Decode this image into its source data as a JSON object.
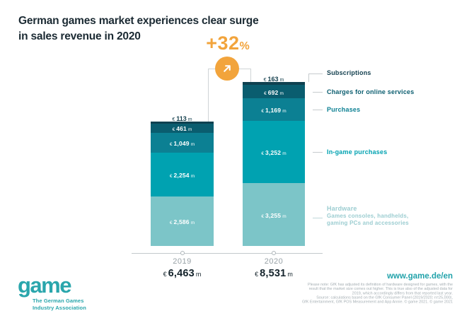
{
  "title": "German games market experiences clear surge\nin sales revenue in 2020",
  "growth": {
    "value": "+32",
    "percent": "%",
    "arrow_icon": "arrow-up-right-icon"
  },
  "chart_data": {
    "type": "bar",
    "subtype": "stacked-bar",
    "title": "German games market experiences clear surge in sales revenue in 2020",
    "unit": "€ million",
    "currency": "€",
    "unit_suffix": "m",
    "growth_pct": "+32%",
    "legend_position": "right",
    "categories": [
      "2019",
      "2020"
    ],
    "totals": [
      {
        "value": 6463,
        "label": "6,463"
      },
      {
        "value": 8531,
        "label": "8,531"
      }
    ],
    "segments": [
      {
        "name": "Subscriptions",
        "color": "#0F4150",
        "label_color": "#123F4E",
        "label_outside": true,
        "values": [
          113,
          163
        ],
        "labels": [
          "113",
          "163"
        ]
      },
      {
        "name": "Charges for online services",
        "color": "#0A5D6F",
        "label_color": "#0A5D6F",
        "values": [
          461,
          692
        ],
        "labels": [
          "461",
          "692"
        ]
      },
      {
        "name": "Purchases",
        "color": "#0C8093",
        "label_color": "#0C8093",
        "values": [
          1049,
          1169
        ],
        "labels": [
          "1,049",
          "1,169"
        ]
      },
      {
        "name": "In-game purchases",
        "color": "#00A2B1",
        "label_color": "#00A2B1",
        "values": [
          2254,
          3252
        ],
        "labels": [
          "2,254",
          "3,252"
        ]
      },
      {
        "name": "Hardware",
        "color": "#7CC5C8",
        "label_color": "#9CCDD1",
        "sublabel": "Games consoles, handhelds,\ngaming PCs and accessories",
        "values": [
          2586,
          3255
        ],
        "labels": [
          "2,586",
          "3,255"
        ]
      }
    ]
  },
  "footer": {
    "logo_text": "game",
    "logo_sub": "The German Games\nIndustry Association",
    "website": "www.game.de/en",
    "note": "Please note: GfK has adjusted its definition of hardware designed for games, with the\nresult that the market size comes out higher. This is true also of the adjusted data for\n2019, which accordingly differs from that reported last year.\nSource: calculations based on the GfK Consumer Panel (2019/2020; n=25,000),\nGfK Entertainment, GfK POS Measurement and App Annie. © game 2021. © game 2021"
  },
  "colors": {
    "accent_orange": "#F2A43C",
    "brand_teal": "#2AA6AC",
    "title_navy": "#1B2A33",
    "axis_gray": "#C3C9CC"
  }
}
